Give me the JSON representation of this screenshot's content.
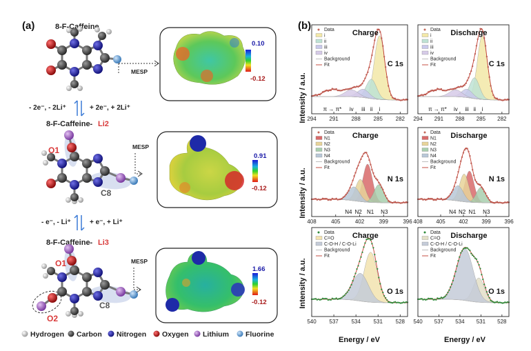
{
  "figure": {
    "panel_a_label": "(a)",
    "panel_b_label": "(b)",
    "molecules": [
      {
        "title": "8-F-Caffeine",
        "title_suffix": "",
        "mesp_label": "MESP",
        "scale_max": "0.10",
        "scale_min": "-0.12"
      },
      {
        "title": "8-F-Caffeine-",
        "title_suffix": "Li2",
        "mesp_label": "MESP",
        "scale_max": "0.91",
        "scale_min": "-0.12",
        "atom_labels": [
          "O1",
          "C8"
        ]
      },
      {
        "title": "8-F-Caffeine-",
        "title_suffix": "Li3",
        "mesp_label": "MESP",
        "scale_max": "1.66",
        "scale_min": "-0.12",
        "atom_labels": [
          "O1",
          "C8",
          "O2"
        ]
      }
    ],
    "reactions": [
      {
        "left": "- 2e⁻, - 2Li⁺",
        "right": "+ 2e⁻, + 2Li⁺"
      },
      {
        "left": "- e⁻, - Li⁺",
        "right": "+ e⁻, + Li⁺"
      }
    ],
    "atom_legend": [
      {
        "name": "Hydrogen",
        "color": "#d9d9d9"
      },
      {
        "name": "Carbon",
        "color": "#555555"
      },
      {
        "name": "Nitrogen",
        "color": "#2b2bb5"
      },
      {
        "name": "Oxygen",
        "color": "#d42020"
      },
      {
        "name": "Lithium",
        "color": "#b174d6"
      },
      {
        "name": "Fluorine",
        "color": "#7ab0e0"
      }
    ],
    "y_axis_title": "Intensity / a.u.",
    "x_axis_title": "Energy / eV"
  },
  "chart_data": [
    {
      "type": "line",
      "title": "Charge",
      "core": "C 1s",
      "xlim": [
        294,
        281
      ],
      "x_ticks": [
        294,
        291,
        288,
        285,
        282
      ],
      "legend": [
        "Data",
        "i",
        "ii",
        "iii",
        "iv",
        "Background",
        "Fit"
      ],
      "series_colors": [
        "#f3e8a8",
        "#bfe3d5",
        "#c9c9ec",
        "#d6cbe8"
      ],
      "peaks": [
        {
          "name": "i",
          "center": 284.8,
          "height": 0.92,
          "width": 0.7
        },
        {
          "name": "ii",
          "center": 285.9,
          "height": 0.28,
          "width": 0.7
        },
        {
          "name": "iii",
          "center": 287.0,
          "height": 0.12,
          "width": 0.8
        },
        {
          "name": "iv",
          "center": 288.6,
          "height": 0.1,
          "width": 0.9
        }
      ],
      "satellite": {
        "center": 291.2,
        "height": 0.1,
        "width": 1.2
      },
      "peak_labels": [
        "π → π*",
        "iv",
        "iii",
        "ii",
        "i"
      ]
    },
    {
      "type": "line",
      "title": "Discharge",
      "core": "C 1s",
      "xlim": [
        294,
        281
      ],
      "x_ticks": [
        294,
        291,
        288,
        285,
        282
      ],
      "legend": [
        "Data",
        "i",
        "ii",
        "iii",
        "iv",
        "Background",
        "Fit"
      ],
      "series_colors": [
        "#f3e8a8",
        "#bfe3d5",
        "#c9c9ec",
        "#d6cbe8"
      ],
      "peaks": [
        {
          "name": "i",
          "center": 284.8,
          "height": 0.92,
          "width": 0.7
        },
        {
          "name": "ii",
          "center": 285.9,
          "height": 0.3,
          "width": 0.7
        },
        {
          "name": "iii",
          "center": 287.0,
          "height": 0.12,
          "width": 0.8
        },
        {
          "name": "iv",
          "center": 288.6,
          "height": 0.1,
          "width": 0.9
        }
      ],
      "satellite": {
        "center": 291.2,
        "height": 0.1,
        "width": 1.2
      },
      "peak_labels": [
        "π → π*",
        "iv",
        "iii",
        "ii",
        "i"
      ]
    },
    {
      "type": "line",
      "title": "Charge",
      "core": "N 1s",
      "xlim": [
        408,
        396
      ],
      "x_ticks": [
        408,
        405,
        402,
        399,
        396
      ],
      "legend": [
        "Data",
        "N1",
        "N2",
        "N3",
        "N4",
        "Background",
        "Fit"
      ],
      "series_colors": [
        "#d96a6a",
        "#e8d49a",
        "#a9cfae",
        "#b9c8d8"
      ],
      "peaks": [
        {
          "name": "N1",
          "center": 401.0,
          "height": 0.55,
          "width": 0.6
        },
        {
          "name": "N2",
          "center": 401.9,
          "height": 0.32,
          "width": 0.6
        },
        {
          "name": "N3",
          "center": 399.6,
          "height": 0.26,
          "width": 0.6
        },
        {
          "name": "N4",
          "center": 402.7,
          "height": 0.2,
          "width": 0.7
        }
      ],
      "peak_labels": [
        "N4",
        "N2",
        "N1",
        "N3"
      ]
    },
    {
      "type": "line",
      "title": "Discharge",
      "core": "N 1s",
      "xlim": [
        408,
        396
      ],
      "x_ticks": [
        408,
        405,
        402,
        399,
        396
      ],
      "legend": [
        "Data",
        "N1",
        "N2",
        "N3",
        "N4",
        "Background",
        "Fit"
      ],
      "series_colors": [
        "#d96a6a",
        "#e8d49a",
        "#a9cfae",
        "#b9c8d8"
      ],
      "peaks": [
        {
          "name": "N1",
          "center": 401.2,
          "height": 0.45,
          "width": 0.6
        },
        {
          "name": "N2",
          "center": 401.9,
          "height": 0.4,
          "width": 0.6
        },
        {
          "name": "N3",
          "center": 399.7,
          "height": 0.22,
          "width": 0.6
        },
        {
          "name": "N4",
          "center": 402.7,
          "height": 0.22,
          "width": 0.7
        }
      ],
      "peak_labels": [
        "N4",
        "N2",
        "N1",
        "N3"
      ]
    },
    {
      "type": "line",
      "title": "Charge",
      "core": "O 1s",
      "xlim": [
        540,
        527
      ],
      "x_ticks": [
        540,
        537,
        534,
        531,
        528
      ],
      "legend": [
        "Data",
        "C=O",
        "C-O-H / C-O-Li",
        "Background",
        "Fit"
      ],
      "series_colors": [
        "#f3e3b0",
        "#c5ccd9"
      ],
      "peaks": [
        {
          "name": "C=O",
          "center": 532.0,
          "height": 0.72,
          "width": 0.9
        },
        {
          "name": "C-O-H / C-O-Li",
          "center": 533.4,
          "height": 0.4,
          "width": 1.1
        }
      ]
    },
    {
      "type": "line",
      "title": "Discharge",
      "core": "O 1s",
      "xlim": [
        540,
        527
      ],
      "x_ticks": [
        540,
        537,
        534,
        531,
        528
      ],
      "legend": [
        "Data",
        "C=O",
        "C-O-H / C-O-Li",
        "Background",
        "Fit"
      ],
      "series_colors": [
        "#e3e0c8",
        "#c5ccd9"
      ],
      "peaks": [
        {
          "name": "C=O",
          "center": 531.3,
          "height": 0.35,
          "width": 0.8
        },
        {
          "name": "C-O-H / C-O-Li",
          "center": 533.3,
          "height": 0.75,
          "width": 1.2
        }
      ]
    }
  ]
}
